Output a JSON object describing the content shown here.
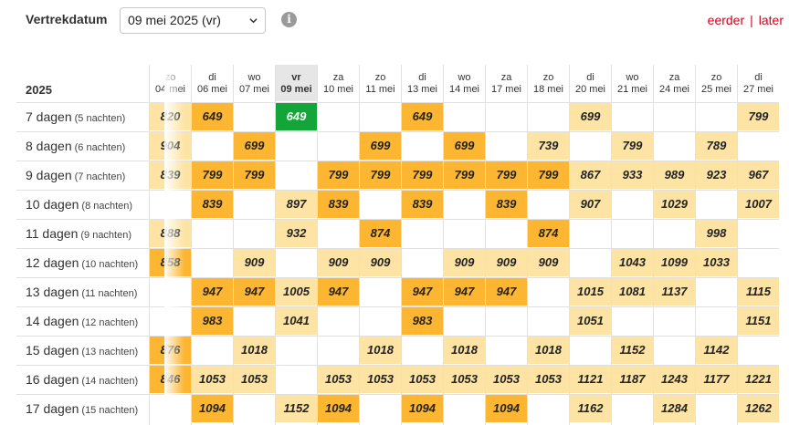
{
  "toolbar": {
    "label": "Vertrekdatum",
    "selected_date": "09 mei 2025 (vr)",
    "info_icon": "info-icon",
    "earlier": "eerder",
    "separator": "|",
    "later": "later"
  },
  "grid": {
    "year": "2025",
    "rows": [
      {
        "days": "7 dagen",
        "nights": "(5 nachten)"
      },
      {
        "days": "8 dagen",
        "nights": "(6 nachten)"
      },
      {
        "days": "9 dagen",
        "nights": "(7 nachten)"
      },
      {
        "days": "10 dagen",
        "nights": "(8 nachten)"
      },
      {
        "days": "11 dagen",
        "nights": "(9 nachten)"
      },
      {
        "days": "12 dagen",
        "nights": "(10 nachten)"
      },
      {
        "days": "13 dagen",
        "nights": "(11 nachten)"
      },
      {
        "days": "14 dagen",
        "nights": "(12 nachten)"
      },
      {
        "days": "15 dagen",
        "nights": "(13 nachten)"
      },
      {
        "days": "16 dagen",
        "nights": "(14 nachten)"
      },
      {
        "days": "17 dagen",
        "nights": "(15 nachten)"
      }
    ],
    "columns": [
      {
        "weekday": "zo",
        "date": "04 mei",
        "prices": [
          "820",
          "904",
          "839",
          "",
          "888",
          "858",
          "",
          "",
          "876",
          "846",
          ""
        ]
      },
      {
        "weekday": "di",
        "date": "06 mei",
        "prices": [
          "649",
          "",
          "799",
          "839",
          "",
          "",
          "947",
          "983",
          "",
          "1053",
          "1094"
        ]
      },
      {
        "weekday": "wo",
        "date": "07 mei",
        "prices": [
          "",
          "699",
          "799",
          "",
          "",
          "909",
          "947",
          "",
          "1018",
          "1053",
          ""
        ]
      },
      {
        "weekday": "vr",
        "date": "09 mei",
        "selected": true,
        "prices": [
          "649",
          "",
          "",
          "897",
          "932",
          "",
          "1005",
          "1041",
          "",
          "",
          "1152"
        ]
      },
      {
        "weekday": "za",
        "date": "10 mei",
        "prices": [
          "",
          "",
          "799",
          "839",
          "",
          "909",
          "947",
          "",
          "",
          "1053",
          "1094"
        ]
      },
      {
        "weekday": "zo",
        "date": "11 mei",
        "prices": [
          "",
          "699",
          "799",
          "",
          "874",
          "909",
          "",
          "",
          "1018",
          "1053",
          ""
        ]
      },
      {
        "weekday": "di",
        "date": "13 mei",
        "prices": [
          "649",
          "",
          "799",
          "839",
          "",
          "",
          "947",
          "983",
          "",
          "1053",
          "1094"
        ]
      },
      {
        "weekday": "wo",
        "date": "14 mei",
        "prices": [
          "",
          "699",
          "799",
          "",
          "",
          "909",
          "947",
          "",
          "1018",
          "1053",
          ""
        ]
      },
      {
        "weekday": "za",
        "date": "17 mei",
        "prices": [
          "",
          "",
          "799",
          "839",
          "",
          "909",
          "947",
          "",
          "",
          "1053",
          "1094"
        ]
      },
      {
        "weekday": "zo",
        "date": "18 mei",
        "prices": [
          "",
          "739",
          "799",
          "",
          "874",
          "909",
          "",
          "",
          "1018",
          "1053",
          ""
        ]
      },
      {
        "weekday": "di",
        "date": "20 mei",
        "prices": [
          "699",
          "",
          "867",
          "907",
          "",
          "",
          "1015",
          "1051",
          "",
          "1121",
          "1162"
        ]
      },
      {
        "weekday": "wo",
        "date": "21 mei",
        "prices": [
          "",
          "799",
          "933",
          "",
          "",
          "1043",
          "1081",
          "",
          "1152",
          "1187",
          ""
        ]
      },
      {
        "weekday": "za",
        "date": "24 mei",
        "prices": [
          "",
          "",
          "989",
          "1029",
          "",
          "1099",
          "1137",
          "",
          "",
          "1243",
          "1284"
        ]
      },
      {
        "weekday": "zo",
        "date": "25 mei",
        "prices": [
          "",
          "789",
          "923",
          "",
          "998",
          "1033",
          "",
          "",
          "1142",
          "1177",
          ""
        ]
      },
      {
        "weekday": "di",
        "date": "27 mei",
        "prices": [
          "799",
          "",
          "967",
          "1007",
          "",
          "",
          "1115",
          "1151",
          "",
          "1221",
          "1262"
        ]
      }
    ]
  },
  "colors": {
    "available": "#fde4a4",
    "lowest": "#fcb632",
    "selected": "#13a539",
    "link": "#d0021b"
  }
}
